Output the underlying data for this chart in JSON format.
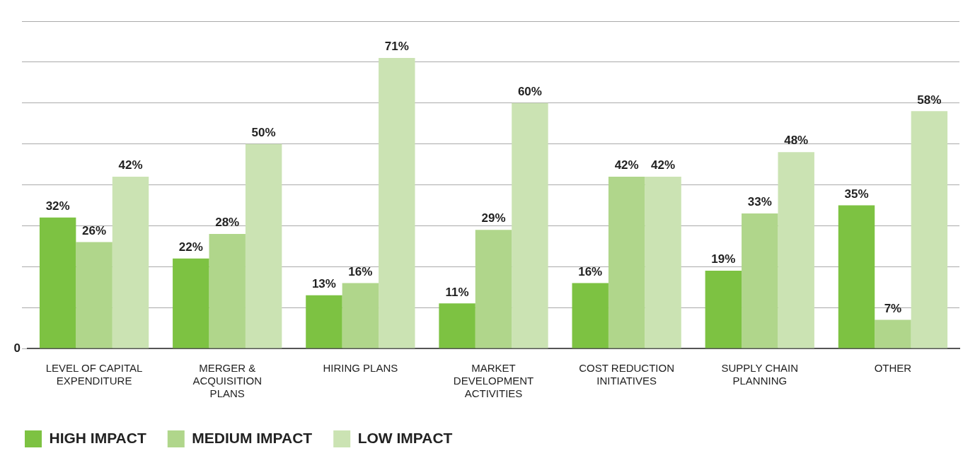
{
  "chart_data": {
    "type": "bar",
    "categories": [
      "LEVEL OF CAPITAL EXPENDITURE",
      "MERGER & ACQUISITION PLANS",
      "HIRING PLANS",
      "MARKET DEVELOPMENT ACTIVITIES",
      "COST REDUCTION INITIATIVES",
      "SUPPLY CHAIN PLANNING",
      "OTHER"
    ],
    "series": [
      {
        "name": "HIGH IMPACT",
        "color": "#7dc242",
        "values": [
          32,
          22,
          13,
          11,
          16,
          19,
          35
        ],
        "value_labels": [
          "32%",
          "22%",
          "13%",
          "11%",
          "16%",
          "19%",
          "35%"
        ]
      },
      {
        "name": "MEDIUM IMPACT",
        "color": "#b0d68b",
        "values": [
          26,
          28,
          16,
          29,
          42,
          33,
          7
        ],
        "value_labels": [
          "26%",
          "28%",
          "16%",
          "29%",
          "42%",
          "33%",
          "7%"
        ]
      },
      {
        "name": "LOW IMPACT",
        "color": "#cbe3b3",
        "values": [
          42,
          50,
          71,
          60,
          42,
          48,
          58
        ],
        "value_labels": [
          "42%",
          "50%",
          "71%",
          "60%",
          "42%",
          "48%",
          "58%"
        ]
      }
    ],
    "annotations": [
      "0"
    ],
    "tick_labels": "x",
    "grid": "y",
    "legend": "bottom left"
  }
}
